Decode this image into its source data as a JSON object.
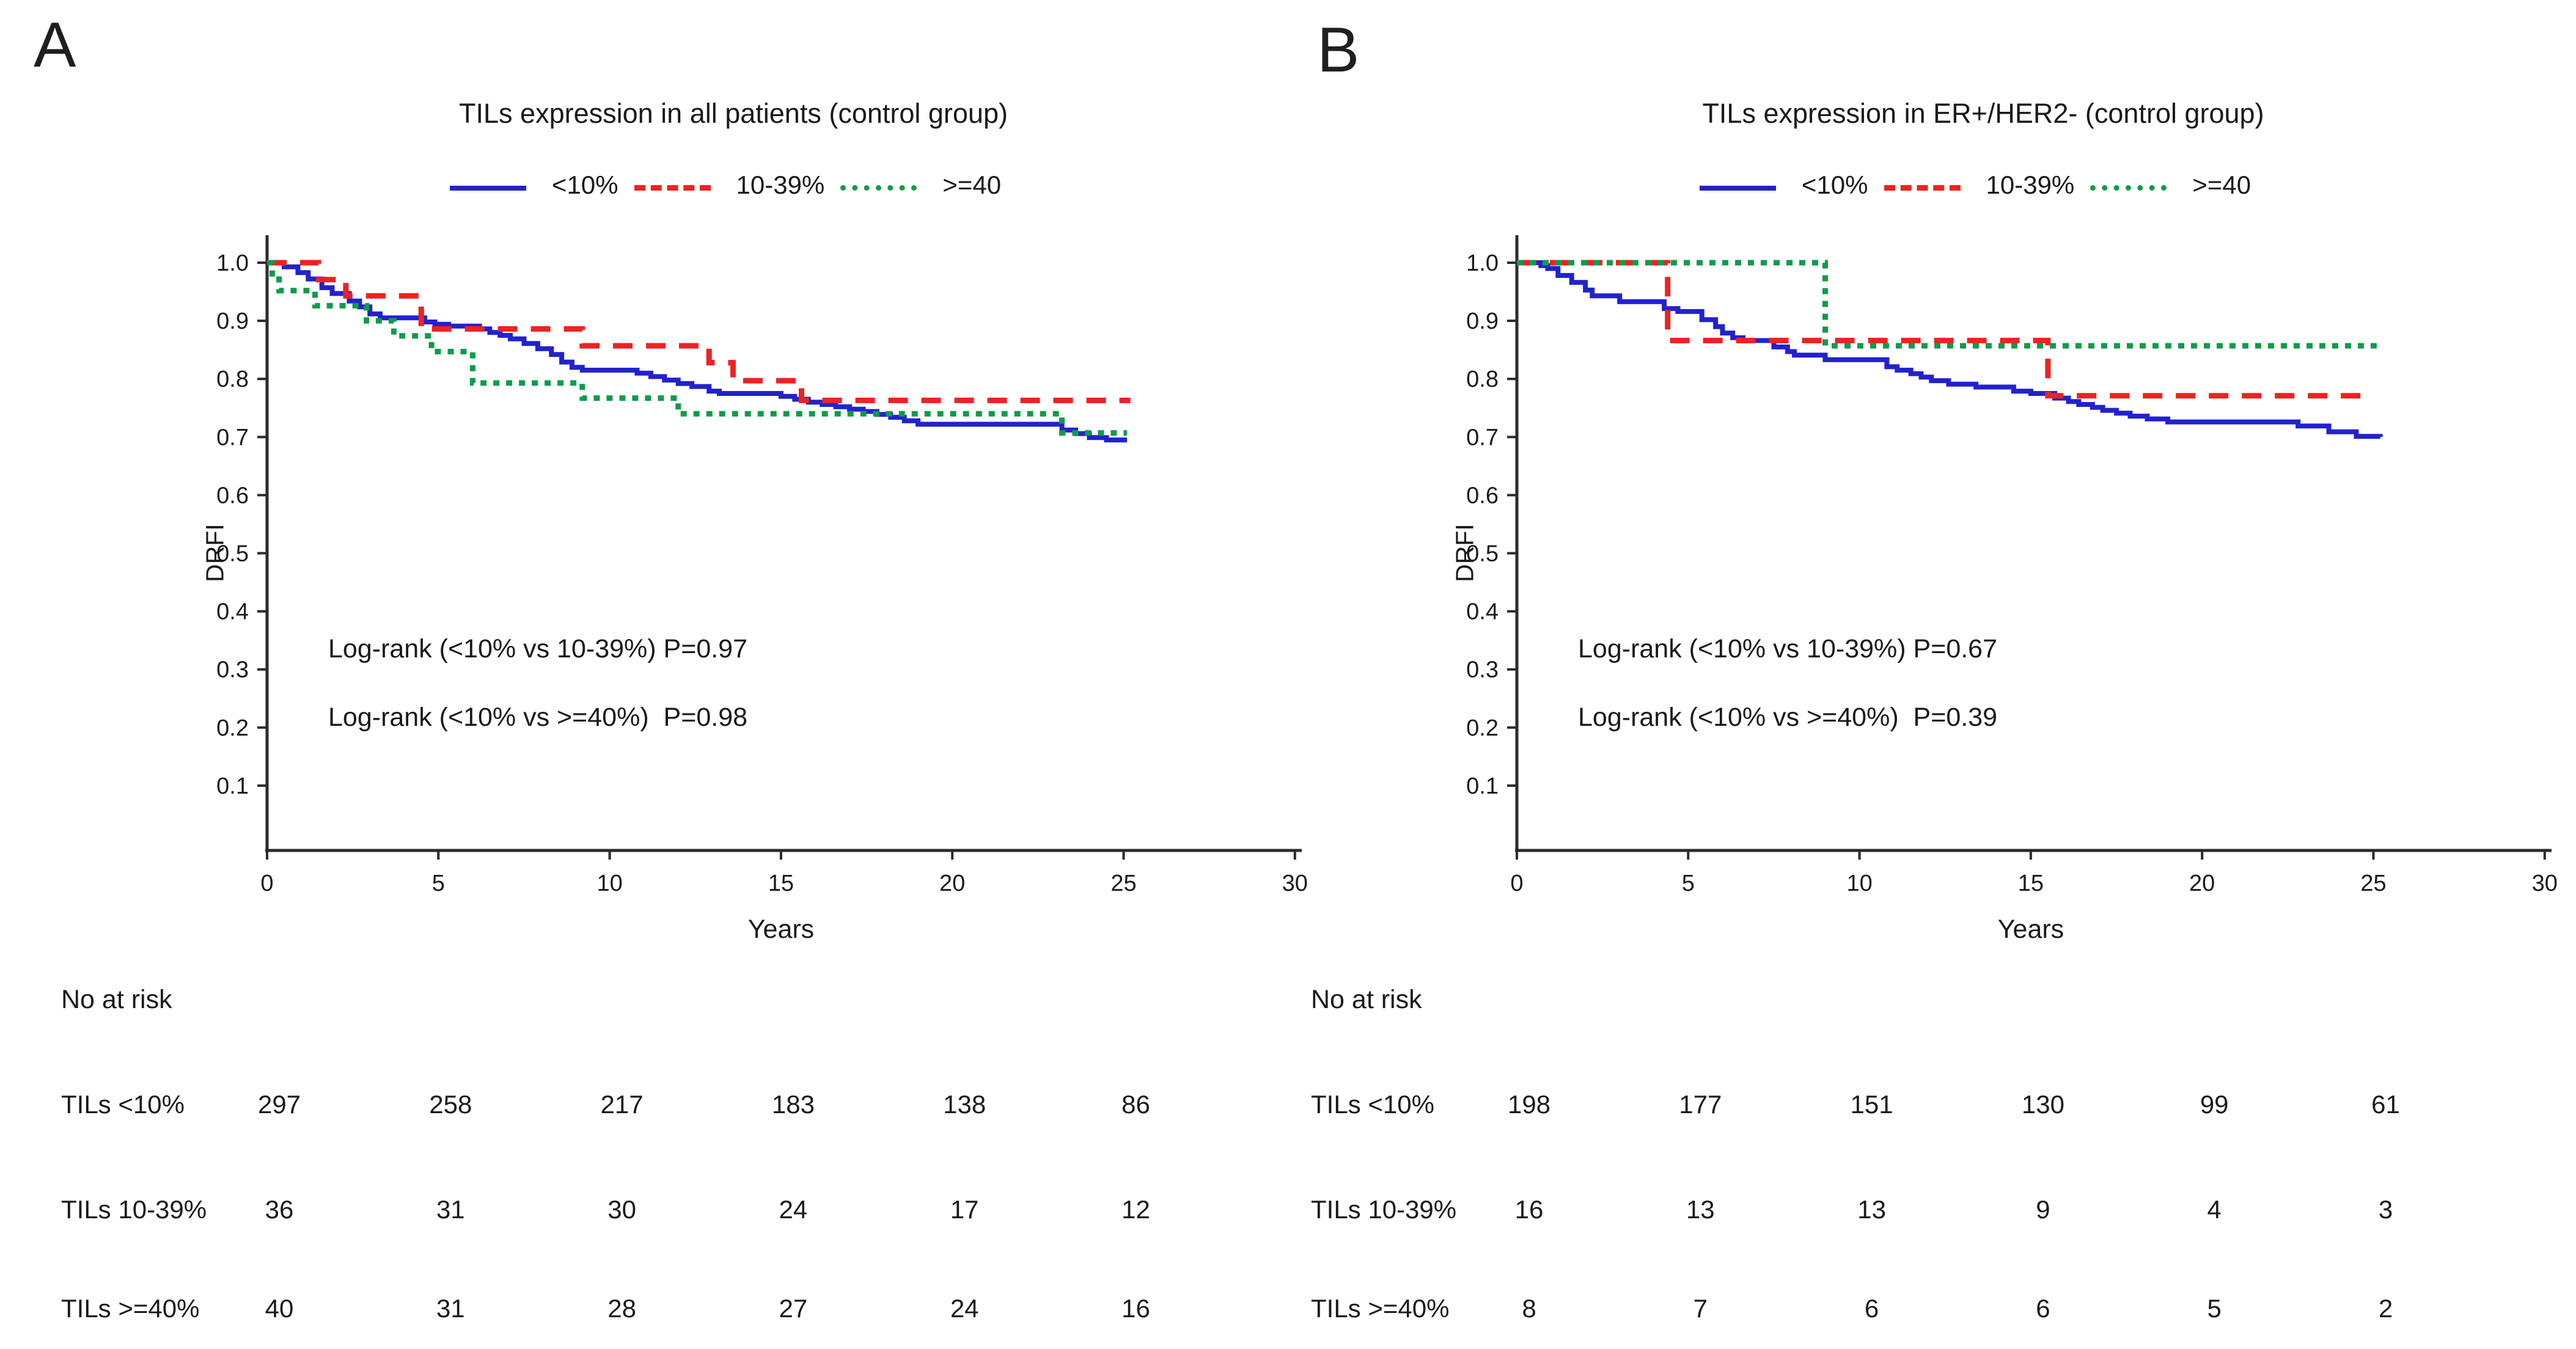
{
  "figure": {
    "panels": [
      {
        "letter": "A",
        "title": "TILs expression in all patients (control group)",
        "ylabel": "DRFI",
        "xlabel": "Years",
        "legend": [
          {
            "label": "<10%",
            "style": "solid",
            "color": "#2222cc"
          },
          {
            "label": "10-39%",
            "style": "dashed",
            "color": "#ee2222"
          },
          {
            "label": ">=40",
            "style": "dotted",
            "color": "#0e9c4a"
          }
        ],
        "stats": [
          "Log-rank (<10% vs 10-39%) P=0.97",
          "Log-rank (<10% vs >=40%)  P=0.98"
        ],
        "risk_table": {
          "title": "No at risk",
          "rows": [
            {
              "label": "TILs <10%",
              "counts": [
                "297",
                "258",
                "217",
                "183",
                "138",
                "86"
              ]
            },
            {
              "label": "TILs 10-39%",
              "counts": [
                "36",
                "31",
                "30",
                "24",
                "17",
                "12"
              ]
            },
            {
              "label": "TILs >=40%",
              "counts": [
                "40",
                "31",
                "28",
                "27",
                "24",
                "16"
              ]
            }
          ]
        }
      },
      {
        "letter": "B",
        "title": "TILs expression in ER+/HER2- (control group)",
        "ylabel": "DRFI",
        "xlabel": "Years",
        "legend": [
          {
            "label": "<10%",
            "style": "solid",
            "color": "#2222cc"
          },
          {
            "label": "10-39%",
            "style": "dashed",
            "color": "#ee2222"
          },
          {
            "label": ">=40",
            "style": "dotted",
            "color": "#0e9c4a"
          }
        ],
        "stats": [
          "Log-rank (<10% vs 10-39%) P=0.67",
          "Log-rank (<10% vs >=40%)  P=0.39"
        ],
        "risk_table": {
          "title": "No at risk",
          "rows": [
            {
              "label": "TILs <10%",
              "counts": [
                "198",
                "177",
                "151",
                "130",
                "99",
                "61"
              ]
            },
            {
              "label": "TILs 10-39%",
              "counts": [
                "16",
                "13",
                "13",
                "9",
                "4",
                "3"
              ]
            },
            {
              "label": "TILs >=40%",
              "counts": [
                "8",
                "7",
                "6",
                "6",
                "5",
                "2"
              ]
            }
          ]
        }
      }
    ]
  },
  "chart_data": [
    {
      "type": "line",
      "subtype": "kaplan-meier-step",
      "title": "TILs expression in all patients (control group)",
      "xlabel": "Years",
      "ylabel": "DRFI",
      "xlim": [
        0,
        30
      ],
      "ylim": [
        0,
        1.05
      ],
      "x_ticks": [
        0,
        5,
        10,
        15,
        20,
        25,
        30
      ],
      "y_ticks": [
        "1.0",
        "0.9",
        "0.8",
        "0.7",
        "0.6",
        "0.5",
        "0.4",
        "0.3",
        "0.2",
        "0.1"
      ],
      "grid": false,
      "legend_position": "top",
      "annotations": [
        "Log-rank (<10% vs 10-39%) P=0.97",
        "Log-rank (<10% vs >=40%)  P=0.98"
      ],
      "series": [
        {
          "name": "<10%",
          "color": "#2222cc",
          "line": "solid",
          "steps": [
            [
              0,
              1.0
            ],
            [
              0.5,
              0.993
            ],
            [
              0.9,
              0.983
            ],
            [
              1.2,
              0.972
            ],
            [
              1.6,
              0.957
            ],
            [
              1.9,
              0.947
            ],
            [
              2.4,
              0.934
            ],
            [
              2.7,
              0.924
            ],
            [
              3.0,
              0.912
            ],
            [
              3.3,
              0.905
            ],
            [
              4.6,
              0.898
            ],
            [
              4.9,
              0.894
            ],
            [
              5.3,
              0.891
            ],
            [
              6.2,
              0.886
            ],
            [
              6.5,
              0.88
            ],
            [
              6.8,
              0.875
            ],
            [
              7.1,
              0.869
            ],
            [
              7.5,
              0.861
            ],
            [
              7.9,
              0.852
            ],
            [
              8.3,
              0.842
            ],
            [
              8.6,
              0.829
            ],
            [
              8.9,
              0.82
            ],
            [
              9.2,
              0.815
            ],
            [
              10.8,
              0.81
            ],
            [
              11.2,
              0.804
            ],
            [
              11.6,
              0.798
            ],
            [
              12.0,
              0.792
            ],
            [
              12.4,
              0.787
            ],
            [
              12.9,
              0.779
            ],
            [
              13.2,
              0.775
            ],
            [
              15.0,
              0.77
            ],
            [
              15.4,
              0.765
            ],
            [
              15.8,
              0.76
            ],
            [
              16.2,
              0.756
            ],
            [
              16.6,
              0.752
            ],
            [
              17.0,
              0.748
            ],
            [
              17.4,
              0.744
            ],
            [
              17.8,
              0.739
            ],
            [
              18.2,
              0.734
            ],
            [
              18.6,
              0.728
            ],
            [
              19.0,
              0.722
            ],
            [
              23.2,
              0.712
            ],
            [
              23.6,
              0.706
            ],
            [
              24.0,
              0.699
            ],
            [
              24.5,
              0.695
            ],
            [
              25.1,
              0.695
            ]
          ]
        },
        {
          "name": "10-39%",
          "color": "#ee2222",
          "line": "dashed",
          "steps": [
            [
              0,
              1.0
            ],
            [
              1.5,
              0.971
            ],
            [
              2.3,
              0.943
            ],
            [
              4.5,
              0.886
            ],
            [
              9.2,
              0.857
            ],
            [
              12.9,
              0.828
            ],
            [
              13.6,
              0.797
            ],
            [
              15.6,
              0.763
            ],
            [
              25.2,
              0.763
            ]
          ]
        },
        {
          "name": ">=40",
          "color": "#0e9c4a",
          "line": "dotted",
          "steps": [
            [
              0,
              1.0
            ],
            [
              0.15,
              0.981
            ],
            [
              0.35,
              0.952
            ],
            [
              1.4,
              0.926
            ],
            [
              2.9,
              0.9
            ],
            [
              3.7,
              0.874
            ],
            [
              4.8,
              0.847
            ],
            [
              6.0,
              0.793
            ],
            [
              9.2,
              0.767
            ],
            [
              12.0,
              0.74
            ],
            [
              23.2,
              0.707
            ],
            [
              25.1,
              0.707
            ]
          ]
        }
      ],
      "no_at_risk": {
        "times": [
          0,
          5,
          10,
          15,
          20,
          25
        ],
        "TILs <10%": [
          297,
          258,
          217,
          183,
          138,
          86
        ],
        "TILs 10-39%": [
          36,
          31,
          30,
          24,
          17,
          12
        ],
        "TILs >=40%": [
          40,
          31,
          28,
          27,
          24,
          16
        ]
      }
    },
    {
      "type": "line",
      "subtype": "kaplan-meier-step",
      "title": "TILs expression in ER+/HER2- (control group)",
      "xlabel": "Years",
      "ylabel": "DRFI",
      "xlim": [
        0,
        30
      ],
      "ylim": [
        0,
        1.05
      ],
      "x_ticks": [
        0,
        5,
        10,
        15,
        20,
        25,
        30
      ],
      "y_ticks": [
        "1.0",
        "0.9",
        "0.8",
        "0.7",
        "0.6",
        "0.5",
        "0.4",
        "0.3",
        "0.2",
        "0.1"
      ],
      "grid": false,
      "legend_position": "top",
      "annotations": [
        "Log-rank (<10% vs 10-39%) P=0.67",
        "Log-rank (<10% vs >=40%)  P=0.39"
      ],
      "series": [
        {
          "name": "<10%",
          "color": "#2222cc",
          "line": "solid",
          "steps": [
            [
              0,
              1.0
            ],
            [
              0.7,
              0.995
            ],
            [
              0.9,
              0.99
            ],
            [
              1.2,
              0.978
            ],
            [
              1.6,
              0.966
            ],
            [
              2.0,
              0.953
            ],
            [
              2.2,
              0.943
            ],
            [
              3.0,
              0.933
            ],
            [
              4.3,
              0.921
            ],
            [
              4.7,
              0.916
            ],
            [
              5.4,
              0.902
            ],
            [
              5.8,
              0.89
            ],
            [
              6.0,
              0.879
            ],
            [
              6.3,
              0.871
            ],
            [
              6.6,
              0.866
            ],
            [
              7.5,
              0.855
            ],
            [
              7.9,
              0.847
            ],
            [
              8.1,
              0.841
            ],
            [
              9.0,
              0.833
            ],
            [
              10.8,
              0.821
            ],
            [
              11.1,
              0.815
            ],
            [
              11.5,
              0.809
            ],
            [
              11.8,
              0.803
            ],
            [
              12.1,
              0.797
            ],
            [
              12.6,
              0.791
            ],
            [
              13.4,
              0.786
            ],
            [
              14.5,
              0.779
            ],
            [
              15.0,
              0.775
            ],
            [
              15.7,
              0.767
            ],
            [
              16.1,
              0.761
            ],
            [
              16.4,
              0.756
            ],
            [
              16.8,
              0.751
            ],
            [
              17.1,
              0.746
            ],
            [
              17.5,
              0.741
            ],
            [
              17.9,
              0.736
            ],
            [
              18.4,
              0.731
            ],
            [
              19.0,
              0.726
            ],
            [
              22.8,
              0.719
            ],
            [
              23.7,
              0.709
            ],
            [
              24.5,
              0.701
            ],
            [
              25.2,
              0.7
            ]
          ]
        },
        {
          "name": "10-39%",
          "color": "#ee2222",
          "line": "dashed",
          "steps": [
            [
              0,
              1.0
            ],
            [
              4.4,
              0.866
            ],
            [
              15.5,
              0.771
            ],
            [
              24.8,
              0.771
            ]
          ]
        },
        {
          "name": ">=40",
          "color": "#0e9c4a",
          "line": "dotted",
          "steps": [
            [
              0,
              1.0
            ],
            [
              9.0,
              0.857
            ],
            [
              25.2,
              0.857
            ]
          ]
        }
      ],
      "no_at_risk": {
        "times": [
          0,
          5,
          10,
          15,
          20,
          25
        ],
        "TILs <10%": [
          198,
          177,
          151,
          130,
          99,
          61
        ],
        "TILs 10-39%": [
          16,
          13,
          13,
          9,
          4,
          3
        ],
        "TILs >=40%": [
          8,
          7,
          6,
          6,
          5,
          2
        ]
      }
    }
  ]
}
